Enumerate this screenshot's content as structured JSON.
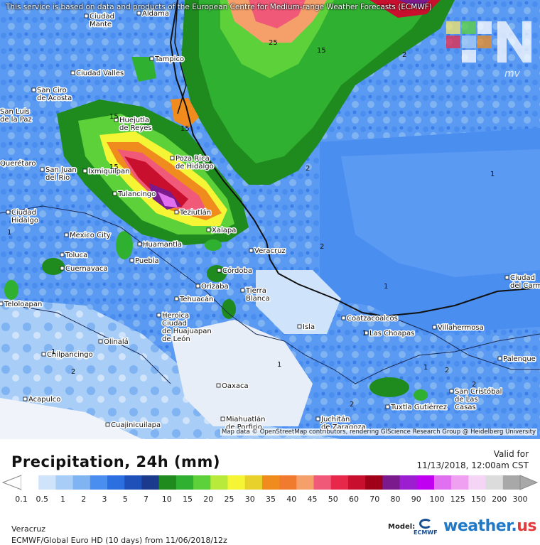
{
  "map": {
    "banner": "This service is based on data and products of the European Centre for Medium-range Weather Forecasts (ECMWF)",
    "attribution": "Map data © OpenStreetMap contributors, rendering GIScience Research Group @ Heidelberg University",
    "watermark": "mv",
    "cities": [
      {
        "name": "Ciudad Mante",
        "lines": [
          "Ciudad",
          "Mante"
        ]
      },
      {
        "name": "Aldama",
        "lines": [
          "Aldama"
        ]
      },
      {
        "name": "Tampico",
        "lines": [
          "Tampico"
        ]
      },
      {
        "name": "Ciudad Valles",
        "lines": [
          "Ciudad Valles"
        ]
      },
      {
        "name": "San Ciro de Acosta",
        "lines": [
          "San Ciro",
          "de Acosta"
        ]
      },
      {
        "name": "Huejutla de Reyes",
        "lines": [
          "Huejutla",
          "de Reyes"
        ]
      },
      {
        "name": "Poza Rica de Hidalgo",
        "lines": [
          "Poza Rica",
          "de Hidalgo"
        ]
      },
      {
        "name": "Querétaro",
        "lines": [
          "Querétaro"
        ]
      },
      {
        "name": "San Juan del Rio",
        "lines": [
          "San Juan",
          "del Rio"
        ]
      },
      {
        "name": "Ixmiquilpan",
        "lines": [
          "Ixmiquilpan"
        ]
      },
      {
        "name": "Tulancingo",
        "lines": [
          "Tulancingo"
        ]
      },
      {
        "name": "Teziutlán",
        "lines": [
          "Teziutlán"
        ]
      },
      {
        "name": "Ciudad Hidalgo",
        "lines": [
          "Ciudad",
          "Hidalgo"
        ]
      },
      {
        "name": "Mexico City",
        "lines": [
          "Mexico City"
        ]
      },
      {
        "name": "Xalapa",
        "lines": [
          "Xalapa"
        ]
      },
      {
        "name": "Huamantla",
        "lines": [
          "Huamantla"
        ]
      },
      {
        "name": "Veracruz",
        "lines": [
          "Veracruz"
        ]
      },
      {
        "name": "Toluca",
        "lines": [
          "Toluca"
        ]
      },
      {
        "name": "Cuernavaca",
        "lines": [
          "Cuernavaca"
        ]
      },
      {
        "name": "Puebla",
        "lines": [
          "Puebla"
        ]
      },
      {
        "name": "Córdoba",
        "lines": [
          "Córdoba"
        ]
      },
      {
        "name": "Orizaba",
        "lines": [
          "Orizaba"
        ]
      },
      {
        "name": "Tierra Blanca",
        "lines": [
          "Tierra",
          "Blanca"
        ]
      },
      {
        "name": "Tehuacán",
        "lines": [
          "Tehuacán"
        ]
      },
      {
        "name": "Teloloapan",
        "lines": [
          "Teloloapan"
        ]
      },
      {
        "name": "Heroica Ciudad de Huajuapan de León",
        "lines": [
          "Heroica",
          "Ciudad",
          "de Huajuapan",
          "de León"
        ]
      },
      {
        "name": "Coatzacoalcos",
        "lines": [
          "Coatzacoalcos"
        ]
      },
      {
        "name": "Isla",
        "lines": [
          "Isla"
        ]
      },
      {
        "name": "Las Choapas",
        "lines": [
          "Las Choapas"
        ]
      },
      {
        "name": "Villahermosa",
        "lines": [
          "Villahermosa"
        ]
      },
      {
        "name": "Ciudad del Carmen",
        "lines": [
          "Ciudad",
          "del Carmen"
        ]
      },
      {
        "name": "Olinalá",
        "lines": [
          "Olinalá"
        ]
      },
      {
        "name": "Chilpancingo",
        "lines": [
          "Chilpancingo"
        ]
      },
      {
        "name": "Palenque",
        "lines": [
          "Palenque"
        ]
      },
      {
        "name": "Oaxaca",
        "lines": [
          "Oaxaca"
        ]
      },
      {
        "name": "San Cristóbal de Las Casas",
        "lines": [
          "San Cristóbal",
          "de Las",
          "Casas"
        ]
      },
      {
        "name": "Tuxtla Gutiérrez",
        "lines": [
          "Tuxtla Gutiérrez"
        ]
      },
      {
        "name": "Acapulco",
        "lines": [
          "Acapulco"
        ]
      },
      {
        "name": "Cuajinicuilapa",
        "lines": [
          "Cuajinicuilapa"
        ]
      },
      {
        "name": "Miahuatlán de Porfirio",
        "lines": [
          "Miahuatlán",
          "de Porfirio"
        ]
      },
      {
        "name": "Juchitán de Zaragoza",
        "lines": [
          "Juchitán",
          "de Zaragoza"
        ]
      },
      {
        "name": "San Luis de la Paz",
        "lines": [
          "San Luis",
          "de la Paz"
        ]
      }
    ],
    "contour_labels": [
      "25",
      "15",
      "2",
      "15",
      "15",
      "2",
      "1",
      "2",
      "1",
      "1",
      "15",
      "1",
      "1",
      "2",
      "1",
      "2",
      "2",
      "1",
      "2"
    ]
  },
  "legend": {
    "title": "Precipitation, 24h (mm)",
    "valid_label": "Valid for",
    "valid_date": "11/13/2018, 12:00am CST",
    "ticks": [
      "0.1",
      "0.5",
      "1",
      "2",
      "3",
      "5",
      "7",
      "10",
      "15",
      "20",
      "25",
      "30",
      "35",
      "40",
      "45",
      "50",
      "60",
      "70",
      "80",
      "90",
      "100",
      "125",
      "150",
      "200",
      "300"
    ],
    "colors": [
      "#ffffff",
      "#cfe3fb",
      "#a8cdf7",
      "#7fb3f2",
      "#4a8ef0",
      "#2b6fe0",
      "#1f4fb8",
      "#1b3a8e",
      "#1f8b1f",
      "#30b030",
      "#5cd13a",
      "#b8ea3c",
      "#f5f536",
      "#e8d12a",
      "#f08b1e",
      "#f07a2e",
      "#f5a06a",
      "#f05a78",
      "#e8284a",
      "#c8102e",
      "#a00018",
      "#7a1a8c",
      "#9b1fd0",
      "#c000f0",
      "#e070f0",
      "#f0a0f0",
      "#f5d5f5",
      "#dcdcdc",
      "#a8a8a8"
    ],
    "location": "Veracruz",
    "model_run": "ECMWF/Global Euro HD (10 days) from 11/06/2018/12z",
    "model_label": "Model:",
    "ecmwf_text": "ECMWF",
    "brand": "weather.",
    "brand_suffix": "us"
  }
}
